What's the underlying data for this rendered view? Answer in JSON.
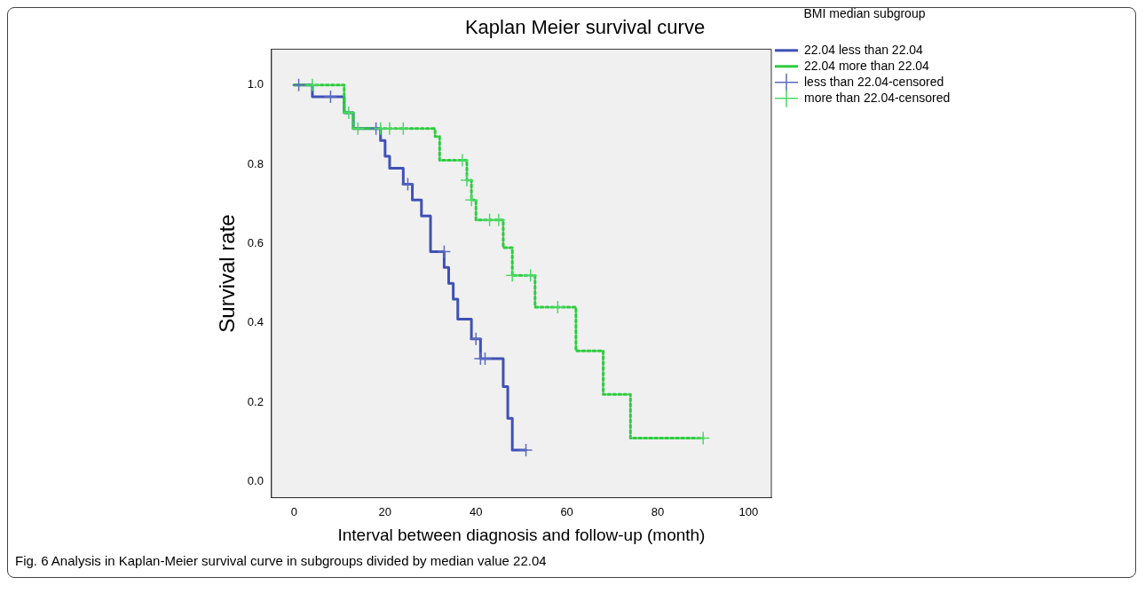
{
  "chart_data": {
    "type": "step",
    "title": "Kaplan Meier survival curve",
    "xlabel": "Interval between diagnosis and follow-up (month)",
    "ylabel": "Survival rate",
    "legend_title": "BMI median subgroup",
    "legend": "right",
    "grid": false,
    "xlim": [
      -5,
      105
    ],
    "xticks": [
      0,
      20,
      40,
      60,
      80,
      100
    ],
    "ylim": [
      -0.04,
      1.09
    ],
    "yticks": [
      {
        "value": 0,
        "label": "0.0"
      },
      0.2,
      0.4,
      0.6,
      0.8,
      {
        "value": 1,
        "label": "1.0"
      }
    ],
    "series": [
      {
        "name": "22.04 less than 22.04",
        "color": "#3f51b5",
        "line_style": "solid",
        "marker": "none",
        "x": [
          0,
          4,
          11,
          13,
          19,
          20,
          21,
          24,
          26,
          28,
          30,
          33,
          34,
          35,
          36,
          39,
          41,
          46,
          47,
          48,
          51
        ],
        "values": [
          1,
          0.97,
          0.93,
          0.89,
          0.86,
          0.82,
          0.79,
          0.75,
          0.71,
          0.67,
          0.58,
          0.54,
          0.5,
          0.46,
          0.41,
          0.36,
          0.31,
          0.24,
          0.16,
          0.08,
          0.08
        ]
      },
      {
        "name": "22.04 more than 22.04",
        "color": "#2ecc40",
        "line_style": "dotted",
        "marker": "none",
        "x": [
          0,
          11,
          13,
          31,
          32,
          38,
          39,
          40,
          46,
          48,
          53,
          62,
          68,
          74,
          90
        ],
        "values": [
          1,
          0.93,
          0.89,
          0.87,
          0.81,
          0.76,
          0.71,
          0.66,
          0.59,
          0.52,
          0.44,
          0.33,
          0.22,
          0.11,
          0.11
        ]
      },
      {
        "name": "less than 22.04-censored",
        "type": "scatter",
        "color": "#5c6bc0",
        "marker": "cross",
        "x": [
          1,
          8,
          18,
          25,
          33,
          40,
          41,
          42,
          51
        ],
        "values": [
          1,
          0.97,
          0.89,
          0.75,
          0.58,
          0.36,
          0.31,
          0.31,
          0.08
        ]
      },
      {
        "name": "more than 22.04-censored",
        "type": "scatter",
        "color": "#4cd964",
        "marker": "cross",
        "x": [
          4,
          12,
          14,
          19,
          21,
          24,
          37,
          38,
          39,
          43,
          45,
          48,
          52,
          58,
          90
        ],
        "values": [
          1,
          0.93,
          0.89,
          0.89,
          0.89,
          0.89,
          0.81,
          0.76,
          0.71,
          0.66,
          0.66,
          0.52,
          0.52,
          0.44,
          0.11
        ]
      }
    ],
    "annotations": [
      "Fig. 6 Analysis in Kaplan-Meier survival curve in subgroups divided by median value 22.04"
    ]
  }
}
